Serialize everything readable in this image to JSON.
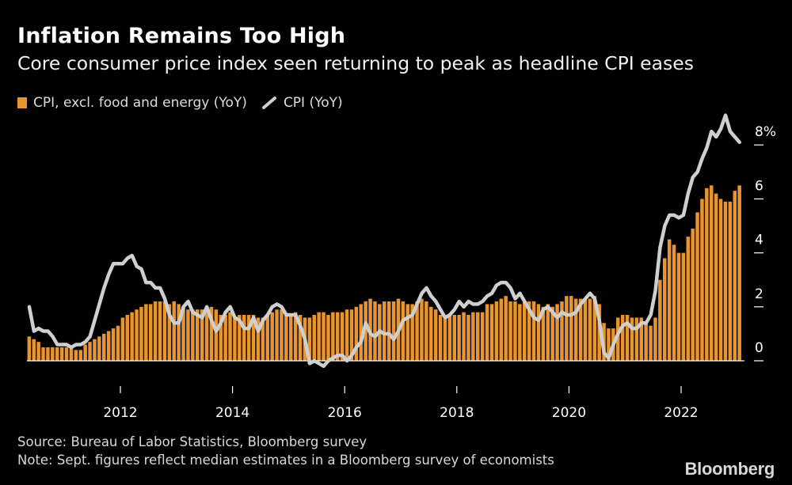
{
  "title": "Inflation Remains Too High",
  "subtitle": "Core consumer price index seen returning to peak as headline CPI eases",
  "source": "Source: Bureau of Labor Statistics, Bloomberg survey",
  "note": "Note: Sept. figures reflect median estimates in a Bloomberg survey of economists",
  "brand": "Bloomberg",
  "colors": {
    "core": "#e8942f",
    "headline": "#cfcfcf",
    "background": "#000000"
  },
  "chart_data": {
    "type": "bar",
    "title": "Inflation Remains Too High",
    "subtitle": "Core consumer price index seen returning to peak as headline CPI eases",
    "x_axis": {
      "type": "time",
      "start": "2010-05",
      "end": "2022-09",
      "tick_labels": [
        "2012",
        "2014",
        "2016",
        "2018",
        "2020",
        "2022"
      ]
    },
    "y_axis": {
      "ylim": [
        -0.3,
        8.6
      ],
      "ticks": [
        0,
        2,
        4,
        6,
        8
      ],
      "tick_labels": [
        "0",
        "2",
        "4",
        "6",
        "8%"
      ],
      "position": "right"
    },
    "grid": false,
    "legend_position": "top-left",
    "series": [
      {
        "name": "CPI, excl. food and energy (YoY)",
        "type": "bar",
        "values": [
          0.9,
          0.8,
          0.7,
          0.5,
          0.5,
          0.5,
          0.5,
          0.5,
          0.5,
          0.5,
          0.4,
          0.4,
          0.6,
          0.7,
          0.8,
          0.9,
          1.0,
          1.1,
          1.2,
          1.3,
          1.6,
          1.7,
          1.8,
          1.9,
          2.0,
          2.1,
          2.1,
          2.2,
          2.2,
          2.2,
          2.1,
          2.2,
          2.1,
          2.0,
          1.9,
          1.9,
          1.9,
          1.9,
          1.9,
          2.0,
          1.9,
          1.7,
          1.7,
          1.8,
          1.6,
          1.7,
          1.7,
          1.7,
          1.7,
          1.6,
          1.6,
          1.7,
          1.8,
          1.9,
          1.9,
          1.7,
          1.7,
          1.8,
          1.7,
          1.6,
          1.6,
          1.7,
          1.8,
          1.8,
          1.7,
          1.8,
          1.8,
          1.8,
          1.9,
          1.9,
          2.0,
          2.1,
          2.2,
          2.3,
          2.2,
          2.1,
          2.2,
          2.2,
          2.2,
          2.3,
          2.2,
          2.1,
          2.1,
          2.2,
          2.3,
          2.2,
          2.0,
          1.9,
          1.7,
          1.7,
          1.7,
          1.7,
          1.7,
          1.8,
          1.7,
          1.8,
          1.8,
          1.8,
          2.1,
          2.1,
          2.2,
          2.3,
          2.4,
          2.2,
          2.2,
          2.1,
          2.2,
          2.2,
          2.2,
          2.1,
          2.0,
          2.1,
          2.0,
          2.1,
          2.2,
          2.4,
          2.4,
          2.3,
          2.3,
          2.3,
          2.3,
          2.4,
          2.1,
          1.4,
          1.2,
          1.2,
          1.6,
          1.7,
          1.7,
          1.6,
          1.6,
          1.6,
          1.4,
          1.3,
          1.6,
          3.0,
          3.8,
          4.5,
          4.3,
          4.0,
          4.0,
          4.6,
          4.9,
          5.5,
          6.0,
          6.4,
          6.5,
          6.2,
          6.0,
          5.9,
          5.9,
          6.3,
          6.5
        ]
      },
      {
        "name": "CPI (YoY)",
        "type": "line",
        "values": [
          2.0,
          1.1,
          1.2,
          1.1,
          1.1,
          0.9,
          0.6,
          0.6,
          0.6,
          0.5,
          0.6,
          0.6,
          0.7,
          0.9,
          1.5,
          2.1,
          2.7,
          3.2,
          3.6,
          3.6,
          3.6,
          3.8,
          3.9,
          3.5,
          3.4,
          2.9,
          2.9,
          2.7,
          2.7,
          2.3,
          1.7,
          1.4,
          1.4,
          2.0,
          2.2,
          1.8,
          1.7,
          1.6,
          2.0,
          1.5,
          1.1,
          1.4,
          1.8,
          2.0,
          1.6,
          1.5,
          1.2,
          1.2,
          1.6,
          1.1,
          1.5,
          1.7,
          2.0,
          2.1,
          2.0,
          1.7,
          1.7,
          1.7,
          1.3,
          0.8,
          -0.1,
          0.0,
          -0.1,
          -0.2,
          0.0,
          0.1,
          0.2,
          0.2,
          0.0,
          0.2,
          0.5,
          0.7,
          1.4,
          1.0,
          0.9,
          1.1,
          1.0,
          1.0,
          0.8,
          1.1,
          1.5,
          1.6,
          1.7,
          2.1,
          2.5,
          2.7,
          2.4,
          2.2,
          1.9,
          1.6,
          1.7,
          1.9,
          2.2,
          2.0,
          2.2,
          2.1,
          2.1,
          2.2,
          2.4,
          2.5,
          2.8,
          2.9,
          2.9,
          2.7,
          2.3,
          2.5,
          2.2,
          1.9,
          1.6,
          1.5,
          1.9,
          2.0,
          1.8,
          1.6,
          1.8,
          1.7,
          1.7,
          1.8,
          2.1,
          2.3,
          2.5,
          2.3,
          1.5,
          0.3,
          0.1,
          0.6,
          1.0,
          1.3,
          1.4,
          1.2,
          1.2,
          1.4,
          1.4,
          1.7,
          2.6,
          4.2,
          5.0,
          5.4,
          5.4,
          5.3,
          5.4,
          6.2,
          6.8,
          7.0,
          7.5,
          7.9,
          8.5,
          8.3,
          8.6,
          9.1,
          8.5,
          8.3,
          8.1
        ]
      }
    ]
  }
}
